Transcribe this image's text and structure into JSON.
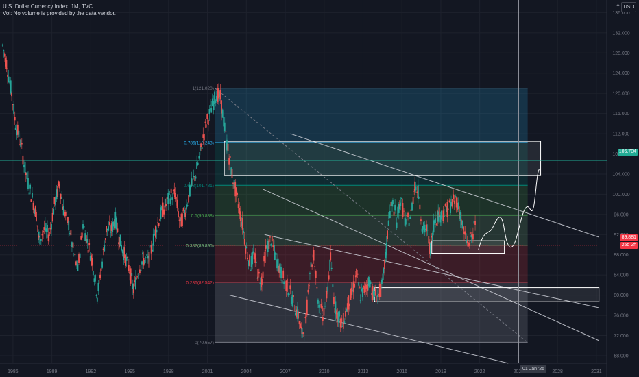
{
  "header": {
    "title": "U.S. Dollar Currency Index, 1M, TVC",
    "volume_note": "Vol: No volume is provided by the data vendor."
  },
  "currency_button": {
    "label": "USD"
  },
  "colors": {
    "background": "#131722",
    "grid": "#1e222d",
    "axis_text": "#787b86",
    "candle_up": "#26a69a",
    "candle_down": "#ef5350",
    "fib_1": "#787b86",
    "fib_0786": "#29b6f6",
    "fib_0618": "#00897b",
    "fib_05": "#4caf50",
    "fib_0382": "#81c784",
    "fib_0236": "#f23645",
    "fib_0": "#787b86",
    "current_price_bg": "#f23645",
    "level_106_bg": "#22ab94"
  },
  "chart_data": {
    "type": "candlestick",
    "title": "U.S. Dollar Currency Index, 1M, TVC",
    "x_ticks": [
      "1986",
      "1989",
      "1992",
      "1995",
      "1998",
      "2001",
      "2004",
      "2007",
      "2010",
      "2013",
      "2016",
      "2019",
      "2022",
      "2025",
      "2028",
      "2031"
    ],
    "y_ticks": [
      "68.000",
      "72.000",
      "76.000",
      "80.000",
      "84.000",
      "88.000",
      "92.000",
      "96.000",
      "100.000",
      "104.000",
      "108.000",
      "112.000",
      "116.000",
      "120.000",
      "124.000",
      "128.000",
      "132.000",
      "136.000"
    ],
    "y_range": [
      66.5,
      138.5
    ],
    "x_range": [
      1985.0,
      2031.8
    ],
    "price_path": [
      [
        1985.2,
        129.5
      ],
      [
        1985.5,
        126
      ],
      [
        1985.9,
        120
      ],
      [
        1986.2,
        114
      ],
      [
        1986.6,
        110
      ],
      [
        1987.0,
        104
      ],
      [
        1987.4,
        100
      ],
      [
        1987.8,
        96
      ],
      [
        1988.0,
        91
      ],
      [
        1988.4,
        93
      ],
      [
        1988.8,
        92
      ],
      [
        1989.2,
        98
      ],
      [
        1989.6,
        102
      ],
      [
        1989.9,
        97
      ],
      [
        1990.3,
        94
      ],
      [
        1990.7,
        88
      ],
      [
        1991.0,
        85
      ],
      [
        1991.4,
        94
      ],
      [
        1991.8,
        90
      ],
      [
        1992.1,
        87
      ],
      [
        1992.5,
        80
      ],
      [
        1992.8,
        85
      ],
      [
        1993.2,
        93
      ],
      [
        1993.6,
        93
      ],
      [
        1993.9,
        95
      ],
      [
        1994.2,
        91
      ],
      [
        1994.6,
        88
      ],
      [
        1995.0,
        85
      ],
      [
        1995.3,
        81
      ],
      [
        1995.7,
        85
      ],
      [
        1996.0,
        87
      ],
      [
        1996.5,
        87
      ],
      [
        1997.0,
        93
      ],
      [
        1997.4,
        96
      ],
      [
        1997.8,
        98
      ],
      [
        1998.2,
        100
      ],
      [
        1998.5,
        100
      ],
      [
        1998.9,
        94
      ],
      [
        1999.3,
        97
      ],
      [
        1999.7,
        101
      ],
      [
        2000.1,
        104
      ],
      [
        2000.5,
        109
      ],
      [
        2000.9,
        114
      ],
      [
        2001.3,
        117
      ],
      [
        2001.7,
        120
      ],
      [
        2002.0,
        119
      ],
      [
        2002.5,
        110
      ],
      [
        2002.9,
        104
      ],
      [
        2003.3,
        99
      ],
      [
        2003.7,
        94
      ],
      [
        2004.0,
        89
      ],
      [
        2004.3,
        86
      ],
      [
        2004.6,
        88
      ],
      [
        2004.9,
        84
      ],
      [
        2005.2,
        83
      ],
      [
        2005.5,
        89
      ],
      [
        2005.9,
        91
      ],
      [
        2006.2,
        88
      ],
      [
        2006.6,
        85
      ],
      [
        2006.9,
        83
      ],
      [
        2007.3,
        81
      ],
      [
        2007.7,
        78
      ],
      [
        2008.0,
        76
      ],
      [
        2008.3,
        72
      ],
      [
        2008.6,
        75
      ],
      [
        2008.9,
        85
      ],
      [
        2009.2,
        88
      ],
      [
        2009.6,
        78
      ],
      [
        2009.9,
        76
      ],
      [
        2010.2,
        80
      ],
      [
        2010.5,
        87
      ],
      [
        2010.8,
        78
      ],
      [
        2011.1,
        76
      ],
      [
        2011.4,
        74
      ],
      [
        2011.8,
        78
      ],
      [
        2012.1,
        80
      ],
      [
        2012.5,
        84
      ],
      [
        2012.8,
        80
      ],
      [
        2013.1,
        81
      ],
      [
        2013.5,
        83
      ],
      [
        2013.8,
        80
      ],
      [
        2014.2,
        80
      ],
      [
        2014.5,
        82
      ],
      [
        2014.8,
        89
      ],
      [
        2015.0,
        96
      ],
      [
        2015.3,
        98
      ],
      [
        2015.6,
        95
      ],
      [
        2015.9,
        99
      ],
      [
        2016.3,
        94
      ],
      [
        2016.7,
        96
      ],
      [
        2017.0,
        102
      ],
      [
        2017.3,
        100
      ],
      [
        2017.6,
        93
      ],
      [
        2017.9,
        93
      ],
      [
        2018.2,
        89
      ],
      [
        2018.5,
        95
      ],
      [
        2018.8,
        96
      ],
      [
        2019.1,
        96
      ],
      [
        2019.5,
        97
      ],
      [
        2019.8,
        98
      ],
      [
        2020.2,
        99
      ],
      [
        2020.5,
        96
      ],
      [
        2020.8,
        92
      ],
      [
        2021.1,
        90
      ],
      [
        2021.4,
        92
      ],
      [
        2021.7,
        94
      ]
    ],
    "fib_levels": [
      {
        "label": "1(121.020)",
        "value": 121.02
      },
      {
        "label": "0.786(110.243)",
        "value": 110.243
      },
      {
        "label": "0.618(101.781)",
        "value": 101.781
      },
      {
        "label": "0.5(95.838)",
        "value": 95.838
      },
      {
        "label": "0.382(89.895)",
        "value": 89.895
      },
      {
        "label": "0.236(82.542)",
        "value": 82.542
      },
      {
        "label": "0(70.657)",
        "value": 70.657
      }
    ],
    "marked_levels": [
      {
        "label": "106.704",
        "value": 106.704
      },
      {
        "label": "89.881",
        "value": 89.881
      }
    ],
    "countdown": "25d 2h",
    "crosshair_date": "01 Jan '25",
    "grid": true
  }
}
